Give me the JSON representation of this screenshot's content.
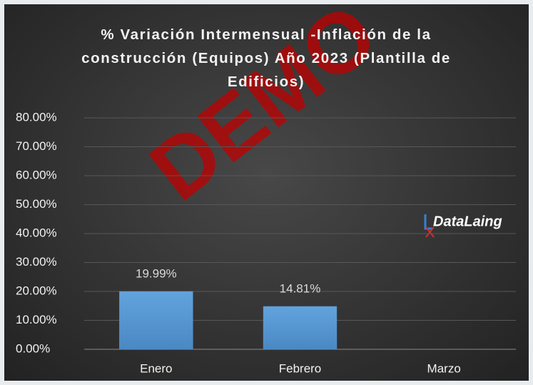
{
  "chart_data": {
    "type": "bar",
    "title": "% Variación Intermensual -Inflación de la construcción (Equipos) Año 2023 (Plantilla de Edificios)",
    "categories": [
      "Enero",
      "Febrero",
      "Marzo"
    ],
    "values": [
      19.99,
      14.81,
      null
    ],
    "value_labels": [
      "19.99%",
      "14.81%",
      null
    ],
    "color": "#5b9bd5",
    "ylim": [
      0,
      80
    ],
    "yticks": [
      {
        "value": 0,
        "label": "0.00%"
      },
      {
        "value": 10,
        "label": "10.00%"
      },
      {
        "value": 20,
        "label": "20.00%"
      },
      {
        "value": 30,
        "label": "30.00%"
      },
      {
        "value": 40,
        "label": "40.00%"
      },
      {
        "value": 50,
        "label": "50.00%"
      },
      {
        "value": 60,
        "label": "60.00%"
      },
      {
        "value": 70,
        "label": "70.00%"
      },
      {
        "value": 80,
        "label": "80.00%"
      }
    ],
    "grid": true,
    "logo": "DataLaing",
    "watermark": "DEMO"
  }
}
